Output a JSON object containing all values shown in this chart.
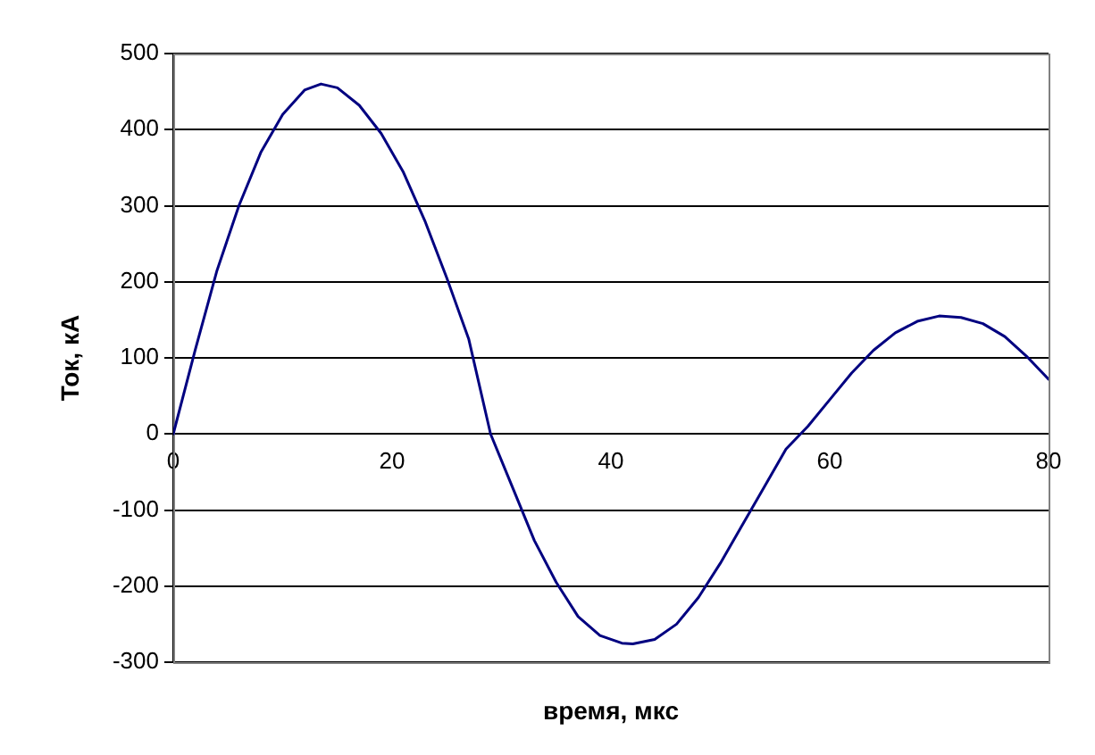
{
  "chart_data": {
    "type": "line",
    "xlabel": "время, мкс",
    "ylabel": "Ток, кА",
    "xlim": [
      0,
      80
    ],
    "xticks": [
      0,
      20,
      40,
      60,
      80
    ],
    "ylim": [
      -300,
      500
    ],
    "yticks": [
      -300,
      -200,
      -100,
      0,
      100,
      200,
      300,
      400,
      500
    ],
    "grid": "y",
    "legend": false,
    "marker": "none",
    "line_style": "solid",
    "series": [
      {
        "color": "#000080",
        "x": [
          0,
          2,
          4,
          6,
          8,
          10,
          12,
          13.5,
          15,
          17,
          19,
          21,
          23,
          25,
          27,
          29,
          31,
          33,
          35,
          37,
          39,
          41,
          42,
          44,
          46,
          48,
          50,
          52,
          54,
          56,
          58,
          60,
          62,
          64,
          66,
          68,
          70,
          72,
          74,
          76,
          78,
          80
        ],
        "values": [
          0,
          110,
          215,
          300,
          370,
          420,
          452,
          460,
          455,
          432,
          395,
          345,
          280,
          205,
          125,
          0,
          -70,
          -140,
          -195,
          -240,
          -265,
          -275,
          -276,
          -270,
          -250,
          -215,
          -170,
          -120,
          -70,
          -20,
          10,
          45,
          80,
          110,
          133,
          148,
          155,
          153,
          145,
          128,
          102,
          72
        ]
      }
    ]
  }
}
